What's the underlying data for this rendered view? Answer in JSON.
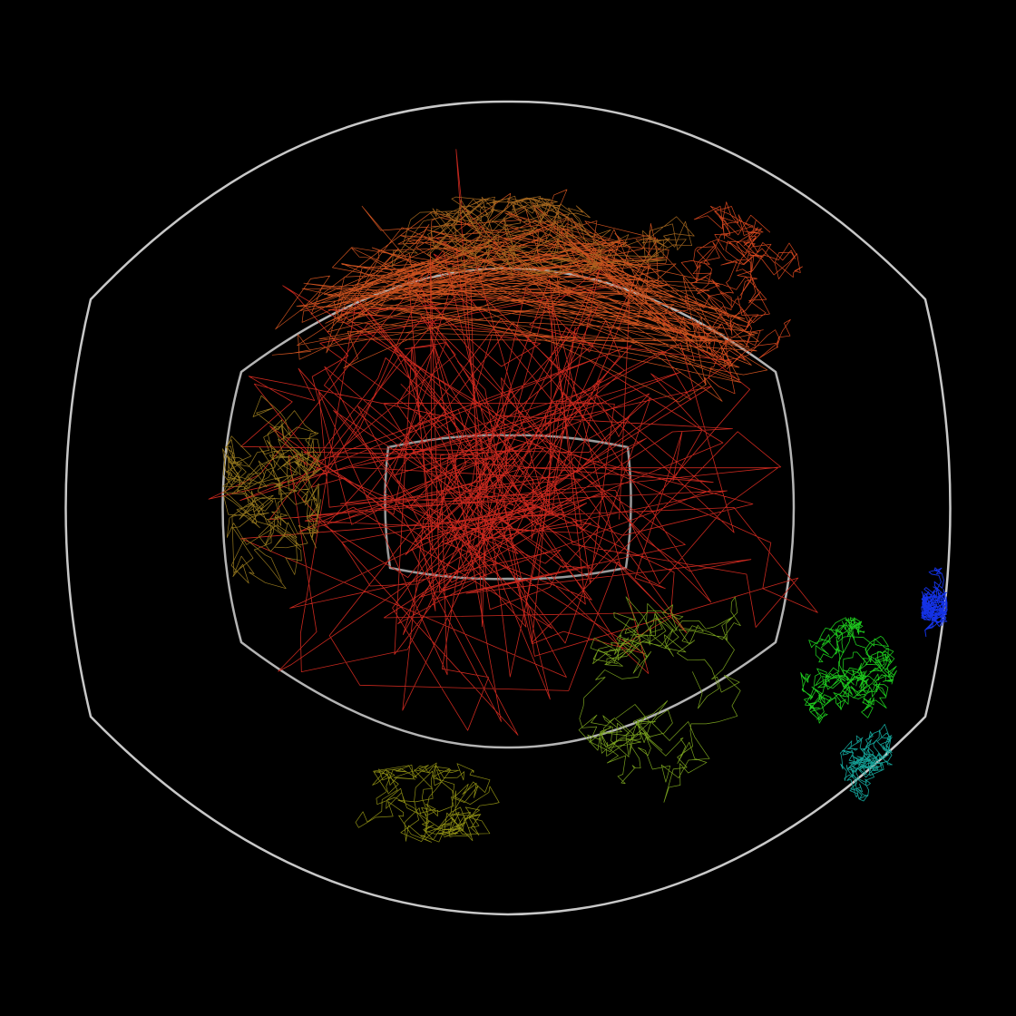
{
  "scene": {
    "background": "#000000",
    "frame_colors": {
      "outer": "#c8c8c8",
      "middle": "#b4b4b4",
      "inner": "#9a9a9a"
    },
    "clusters": [
      {
        "name": "red-core",
        "color": "#c8281e"
      },
      {
        "name": "orange-band",
        "color": "#c8501e"
      },
      {
        "name": "orange-red-upper-right",
        "color": "#d2461e"
      },
      {
        "name": "brown-upper",
        "color": "#a0641e"
      },
      {
        "name": "olive-left",
        "color": "#96781e"
      },
      {
        "name": "olive-lower",
        "color": "#8c8c14"
      },
      {
        "name": "olive-green-lower-right",
        "color": "#78a01e"
      },
      {
        "name": "green-lower-right",
        "color": "#1ec81e"
      },
      {
        "name": "teal-lower-right",
        "color": "#14a096"
      },
      {
        "name": "blue-right",
        "color": "#1432e6"
      }
    ]
  }
}
